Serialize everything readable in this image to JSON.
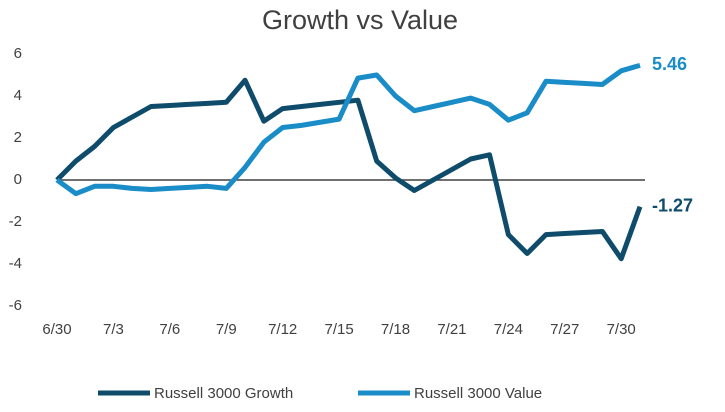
{
  "chart_data": {
    "type": "line",
    "title": "Growth vs Value",
    "categories": [
      "6/30",
      null,
      null,
      "7/3",
      null,
      null,
      "7/6",
      null,
      null,
      "7/9",
      null,
      null,
      "7/12",
      null,
      null,
      "7/15",
      null,
      null,
      "7/18",
      null,
      null,
      "7/21",
      null,
      null,
      "7/24",
      null,
      null,
      "7/27",
      null,
      null,
      "7/30",
      null
    ],
    "series": [
      {
        "name": "Russell 3000 Growth",
        "color": "#0f4c6b",
        "values": [
          0,
          0.9,
          1.6,
          2.5,
          3.0,
          3.5,
          3.55,
          3.6,
          3.65,
          3.7,
          4.75,
          2.8,
          3.4,
          3.5,
          3.6,
          3.7,
          3.8,
          0.9,
          0.1,
          -0.5,
          0.0,
          0.5,
          1.0,
          1.2,
          -2.6,
          -3.5,
          -2.6,
          -2.55,
          -2.5,
          -2.45,
          -3.75,
          -1.27
        ]
      },
      {
        "name": "Russell 3000 Value",
        "color": "#1a8cc7",
        "values": [
          0,
          -0.65,
          -0.3,
          -0.3,
          -0.4,
          -0.45,
          -0.4,
          -0.35,
          -0.3,
          -0.4,
          0.6,
          1.8,
          2.5,
          2.6,
          2.75,
          2.9,
          4.85,
          5.0,
          4.0,
          3.3,
          3.5,
          3.7,
          3.9,
          3.6,
          2.85,
          3.2,
          4.7,
          4.65,
          4.6,
          4.55,
          5.2,
          5.46
        ]
      }
    ],
    "ylim": [
      -6,
      6
    ],
    "yticks": [
      -6,
      -4,
      -2,
      0,
      2,
      4,
      6
    ],
    "grid": false,
    "legend": "bottom"
  }
}
